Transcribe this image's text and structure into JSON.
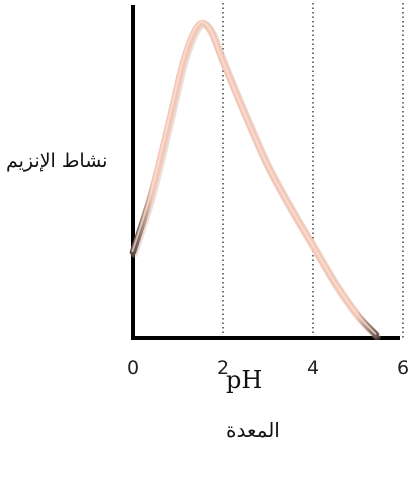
{
  "chart_data": {
    "type": "line",
    "ylabel": "نشاط الإنزيم",
    "xlabel": "pH",
    "subtitle": "المعدة",
    "xlim": [
      0,
      6
    ],
    "ylim": [
      0,
      1
    ],
    "x_ticks": [
      0,
      2,
      4,
      6
    ],
    "x_tick_labels": [
      "0",
      "2",
      "4",
      "6"
    ],
    "gridlines_x": [
      2,
      4,
      6
    ],
    "gridline_style": "dotted",
    "y_ticks_shown": false,
    "series": [
      {
        "color": "#f3c7b6",
        "x": [
          0,
          0.4,
          0.8,
          1.1,
          1.35,
          1.55,
          1.75,
          2.0,
          2.5,
          3.0,
          3.5,
          4.0,
          4.5,
          5.0,
          5.4
        ],
        "values": [
          0.27,
          0.45,
          0.68,
          0.86,
          0.96,
          0.99,
          0.96,
          0.87,
          0.7,
          0.54,
          0.41,
          0.29,
          0.17,
          0.07,
          0.01
        ]
      }
    ]
  }
}
